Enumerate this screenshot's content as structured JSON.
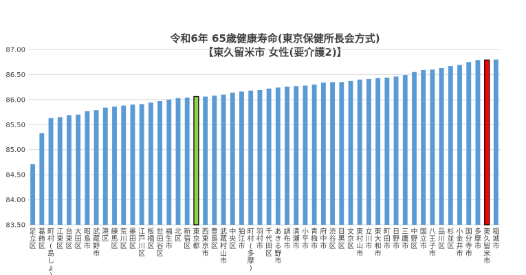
{
  "chart_data": {
    "type": "bar",
    "title_line1": "令和6年 65歳健康寿命(東京保健所長会方式)",
    "title_line2": "【東久留米市 女性(要介護2)】",
    "xlabel": "",
    "ylabel": "",
    "ylim": [
      83.5,
      87.0
    ],
    "yticks": [
      "83.50",
      "84.00",
      "84.50",
      "85.00",
      "85.50",
      "86.00",
      "86.50",
      "87.00"
    ],
    "grid": true,
    "legend": "none",
    "colors": {
      "bar": "#5b9bd5",
      "highlight_tokyo": "#92d050",
      "highlight_target": "#ff0000",
      "highlight_stroke": "#000000",
      "grid": "#d9d9d9",
      "text": "#404040"
    },
    "highlight": {
      "tokyo": "東京都",
      "target": "東久留米市"
    },
    "categories": [
      "足立区",
      "葛飾区",
      "町村(島しょ)",
      "江東区",
      "台東区",
      "大田区",
      "昭島市",
      "武蔵野市",
      "港区",
      "練馬区",
      "荒川区",
      "墨田区",
      "江戸川区",
      "板橋区",
      "世田谷区",
      "福生市",
      "北区",
      "新宿区",
      "東京都",
      "西東京市",
      "豊島区",
      "武蔵村山市",
      "中央区",
      "狛江市",
      "町村(多摩)",
      "羽村市",
      "千代田区",
      "あきる野市",
      "調布市",
      "清瀬市",
      "小平市",
      "青梅市",
      "府中市",
      "渋谷区",
      "目黒区",
      "文京区",
      "東村山市",
      "立川市",
      "東大和市",
      "町田市",
      "日野市",
      "三鷹市",
      "中野区",
      "国立市",
      "八王子市",
      "品川区",
      "杉並区",
      "小金井市",
      "国分寺市",
      "多摩市",
      "東久留米市",
      "稲城市"
    ],
    "values": [
      84.71,
      85.33,
      85.63,
      85.65,
      85.69,
      85.7,
      85.77,
      85.79,
      85.84,
      85.86,
      85.88,
      85.9,
      85.91,
      85.94,
      85.97,
      86.0,
      86.03,
      86.04,
      86.06,
      86.06,
      86.08,
      86.1,
      86.14,
      86.16,
      86.18,
      86.19,
      86.22,
      86.24,
      86.26,
      86.27,
      86.28,
      86.3,
      86.34,
      86.35,
      86.35,
      86.37,
      86.4,
      86.41,
      86.43,
      86.44,
      86.46,
      86.49,
      86.55,
      86.59,
      86.6,
      86.63,
      86.67,
      86.69,
      86.75,
      86.79,
      86.79,
      86.8
    ]
  }
}
